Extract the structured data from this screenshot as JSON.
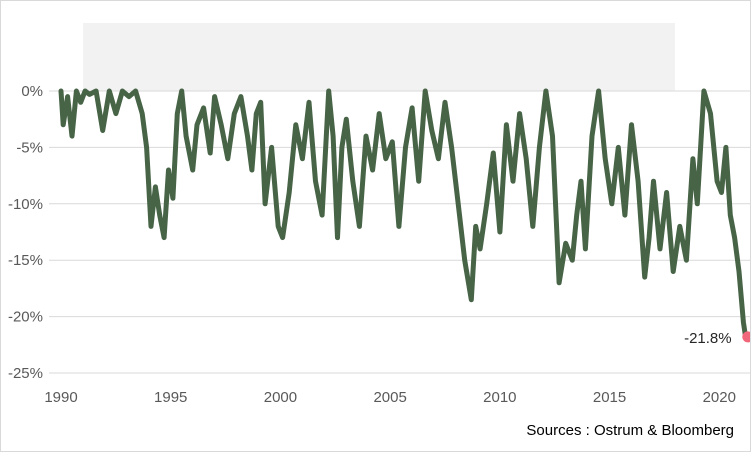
{
  "chart_data": {
    "type": "line",
    "title": "",
    "xlabel": "",
    "ylabel": "",
    "xlim": [
      1990,
      2021.4
    ],
    "ylim": [
      -25,
      0
    ],
    "x_ticks": [
      1990,
      1995,
      2000,
      2005,
      2010,
      2015,
      2020
    ],
    "x_tick_labels": [
      "1990",
      "1995",
      "2000",
      "2005",
      "2010",
      "2015",
      "2020"
    ],
    "y_ticks": [
      0,
      -5,
      -10,
      -15,
      -20,
      -25
    ],
    "y_tick_labels": [
      "0%",
      "-5%",
      "-10%",
      "-15%",
      "-20%",
      "-25%"
    ],
    "grid": "horizontal",
    "legend": "none",
    "series": [
      {
        "color": "#476447",
        "marker_color": "#f0667a",
        "x": [
          1990.0,
          1990.1,
          1990.3,
          1990.5,
          1990.7,
          1990.9,
          1991.1,
          1991.3,
          1991.6,
          1991.9,
          1992.2,
          1992.5,
          1992.8,
          1993.1,
          1993.4,
          1993.7,
          1993.9,
          1994.1,
          1994.3,
          1994.5,
          1994.7,
          1994.9,
          1995.1,
          1995.3,
          1995.5,
          1995.7,
          1996.0,
          1996.2,
          1996.5,
          1996.8,
          1997.0,
          1997.3,
          1997.6,
          1997.9,
          1998.2,
          1998.5,
          1998.7,
          1998.9,
          1999.1,
          1999.3,
          1999.6,
          1999.9,
          2000.1,
          2000.4,
          2000.7,
          2001.0,
          2001.3,
          2001.6,
          2001.9,
          2002.2,
          2002.4,
          2002.6,
          2002.8,
          2003.0,
          2003.3,
          2003.6,
          2003.9,
          2004.2,
          2004.5,
          2004.8,
          2005.1,
          2005.4,
          2005.7,
          2006.0,
          2006.3,
          2006.6,
          2006.9,
          2007.2,
          2007.5,
          2007.8,
          2008.1,
          2008.4,
          2008.7,
          2008.9,
          2009.1,
          2009.4,
          2009.7,
          2010.0,
          2010.3,
          2010.6,
          2010.9,
          2011.2,
          2011.5,
          2011.8,
          2012.1,
          2012.4,
          2012.7,
          2013.0,
          2013.3,
          2013.5,
          2013.7,
          2013.9,
          2014.2,
          2014.5,
          2014.8,
          2015.1,
          2015.4,
          2015.7,
          2016.0,
          2016.3,
          2016.6,
          2016.8,
          2017.0,
          2017.3,
          2017.6,
          2017.9,
          2018.2,
          2018.5,
          2018.8,
          2019.0,
          2019.3,
          2019.6,
          2019.9,
          2020.1,
          2020.3,
          2020.5,
          2020.7,
          2020.9,
          2021.1,
          2021.2,
          2021.3
        ],
        "y": [
          0,
          -3,
          -0.5,
          -4,
          0,
          -1,
          0,
          -0.3,
          0,
          -3.5,
          0,
          -2,
          0,
          -0.5,
          0,
          -2,
          -5,
          -12,
          -8.5,
          -11,
          -13,
          -7,
          -9.5,
          -2,
          0,
          -4,
          -7,
          -3,
          -1.5,
          -5.5,
          -0.5,
          -3,
          -6,
          -2,
          -0.5,
          -4,
          -7,
          -2,
          -1,
          -10,
          -5,
          -12,
          -13,
          -9,
          -3,
          -6,
          -1,
          -8,
          -11,
          0,
          -4,
          -13,
          -5,
          -2.5,
          -8,
          -12,
          -4,
          -7,
          -2,
          -6,
          -4.5,
          -12,
          -5,
          -1.5,
          -8,
          0,
          -3.5,
          -6,
          -1,
          -5,
          -10,
          -15,
          -18.5,
          -12,
          -14,
          -10,
          -5.5,
          -12.5,
          -3,
          -8,
          -2,
          -6,
          -12,
          -5,
          0,
          -4,
          -17,
          -13.5,
          -15,
          -11,
          -8,
          -14,
          -4,
          0,
          -6,
          -10,
          -5,
          -11,
          -3,
          -8,
          -16.5,
          -13,
          -8,
          -14,
          -9,
          -16,
          -12,
          -15,
          -6,
          -10,
          0,
          -2,
          -8,
          -9,
          -5,
          -11,
          -13,
          -16,
          -20.5,
          -21.8,
          -21.8
        ]
      }
    ],
    "annotations": [
      {
        "text": "-21.8%",
        "x": 2021.2,
        "y": -21.8
      }
    ]
  },
  "source": "Sources : Ostrum & Bloomberg"
}
